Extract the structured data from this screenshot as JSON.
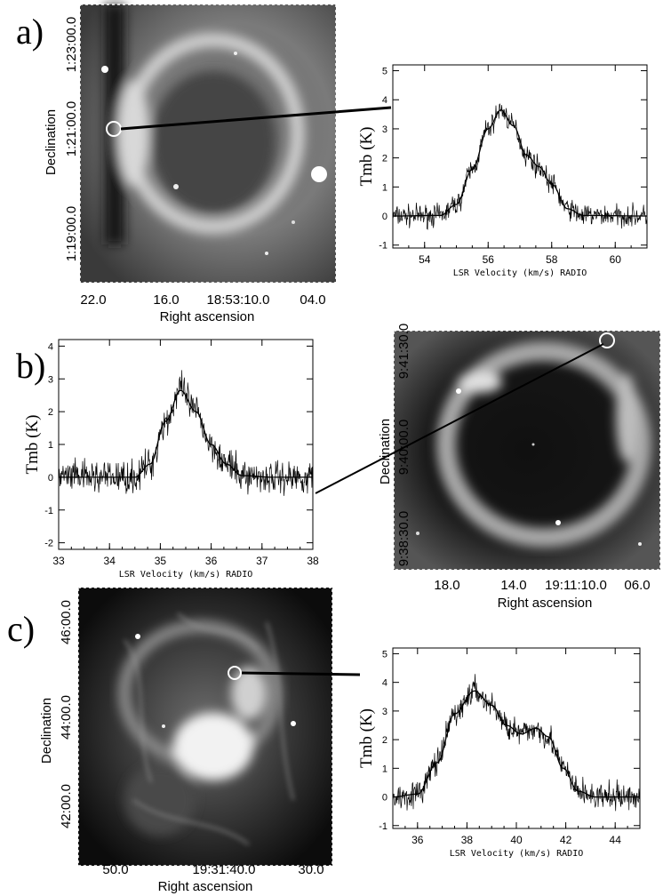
{
  "panels": {
    "a": {
      "label": "a)",
      "image": {
        "ylabel": "Declination",
        "xlabel": "Right ascension",
        "yticks": [
          "1:23:00.0",
          "1:21:00.0",
          "1:19:00.0"
        ],
        "xticks": [
          "22.0",
          "16.0",
          "18:53:10.0",
          "04.0"
        ]
      }
    },
    "b": {
      "label": "b)",
      "image": {
        "ylabel": "Declination",
        "xlabel": "Right ascension",
        "yticks": [
          "9:41:30.0",
          "9:40:00.0",
          "9:38:30.0"
        ],
        "xticks": [
          "18.0",
          "14.0",
          "19:11:10.0",
          "06.0"
        ]
      }
    },
    "c": {
      "label": "c)",
      "image": {
        "ylabel": "Declination",
        "xlabel": "Right ascension",
        "yticks": [
          "46:00.0",
          "44:00.0",
          "42:00.0"
        ],
        "xticks": [
          "50.0",
          "19:31:40.0",
          "30.0"
        ]
      }
    }
  },
  "chart_data": [
    {
      "type": "line",
      "panel": "a",
      "xlabel": "LSR Velocity (km/s) RADIO",
      "ylabel": "Tmb (K)",
      "xlim": [
        53,
        61
      ],
      "ylim": [
        -1.1,
        5.2
      ],
      "xticks": [
        54,
        56,
        58,
        60
      ],
      "yticks": [
        -1,
        0,
        1,
        2,
        3,
        4,
        5
      ],
      "fit": [
        [
          53,
          0
        ],
        [
          54.5,
          0.02
        ],
        [
          55.0,
          0.4
        ],
        [
          55.5,
          1.6
        ],
        [
          56.0,
          3.0
        ],
        [
          56.4,
          3.65
        ],
        [
          56.8,
          3.1
        ],
        [
          57.2,
          2.1
        ],
        [
          57.6,
          1.7
        ],
        [
          58.0,
          1.1
        ],
        [
          58.5,
          0.25
        ],
        [
          59.0,
          0.02
        ],
        [
          61,
          0
        ]
      ],
      "noise": 0.28
    },
    {
      "type": "line",
      "panel": "b",
      "xlabel": "LSR Velocity (km/s) RADIO",
      "ylabel": "Tmb (K)",
      "xlim": [
        33,
        38
      ],
      "ylim": [
        -2.2,
        4.2
      ],
      "xticks": [
        33,
        34,
        35,
        36,
        37,
        38
      ],
      "yticks": [
        -2,
        -1,
        0,
        1,
        2,
        3,
        4
      ],
      "fit": [
        [
          33,
          0
        ],
        [
          34.5,
          0
        ],
        [
          34.8,
          0.4
        ],
        [
          35.1,
          1.7
        ],
        [
          35.4,
          2.65
        ],
        [
          35.7,
          2.0
        ],
        [
          36.0,
          1.0
        ],
        [
          36.3,
          0.4
        ],
        [
          36.6,
          0.05
        ],
        [
          37.2,
          0
        ],
        [
          38,
          0
        ]
      ],
      "noise": 0.38
    },
    {
      "type": "line",
      "panel": "c",
      "xlabel": "LSR Velocity (km/s) RADIO",
      "ylabel": "Tmb (K)",
      "xlim": [
        35,
        45
      ],
      "ylim": [
        -1.1,
        5.2
      ],
      "xticks": [
        36,
        38,
        40,
        42,
        44
      ],
      "yticks": [
        -1,
        0,
        1,
        2,
        3,
        4,
        5
      ],
      "fit": [
        [
          35,
          0
        ],
        [
          36.0,
          0.1
        ],
        [
          36.8,
          1.2
        ],
        [
          37.5,
          2.9
        ],
        [
          38.3,
          3.7
        ],
        [
          39.0,
          3.2
        ],
        [
          39.6,
          2.5
        ],
        [
          40.2,
          2.2
        ],
        [
          40.8,
          2.4
        ],
        [
          41.3,
          2.1
        ],
        [
          41.9,
          1.0
        ],
        [
          42.5,
          0.2
        ],
        [
          43.2,
          0
        ],
        [
          45,
          0
        ]
      ],
      "noise": 0.35
    }
  ]
}
